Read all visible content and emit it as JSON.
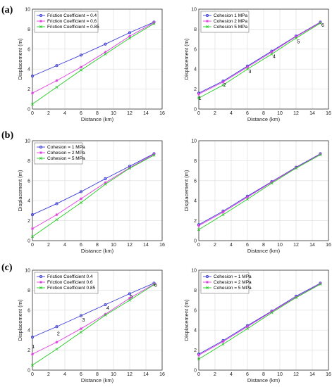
{
  "figure": {
    "row_labels": [
      "(a)",
      "(b)",
      "(c)"
    ]
  },
  "chart_data": [
    {
      "type": "line",
      "xlabel": "Distance (km)",
      "ylabel": "Displacement (m)",
      "xlim": [
        0,
        16
      ],
      "ylim": [
        0,
        10
      ],
      "xticks": [
        0,
        2,
        4,
        6,
        8,
        10,
        12,
        14,
        16
      ],
      "yticks": [
        0,
        2,
        4,
        6,
        8,
        10
      ],
      "grid": true,
      "legend_position": "top-left",
      "x": [
        0,
        3,
        6,
        9,
        12,
        15
      ],
      "series": [
        {
          "name": "Friction Coefficient = 0.4",
          "color": "#3b3bd9",
          "marker": "circle",
          "values": [
            3.3,
            4.35,
            5.4,
            6.5,
            7.65,
            8.7
          ]
        },
        {
          "name": "Friction Coefficient = 0.6",
          "color": "#e03ce0",
          "marker": "star",
          "values": [
            1.6,
            2.85,
            4.2,
            5.7,
            7.3,
            8.65
          ]
        },
        {
          "name": "Friction Coefficient = 0.85",
          "color": "#22cc22",
          "marker": "x",
          "values": [
            0.5,
            2.2,
            3.9,
            5.5,
            7.1,
            8.55
          ]
        }
      ],
      "point_labels": []
    },
    {
      "type": "line",
      "xlabel": "Distance (km)",
      "ylabel": "Displacement (m)",
      "xlim": [
        0,
        16
      ],
      "ylim": [
        0,
        10
      ],
      "xticks": [
        0,
        2,
        4,
        6,
        8,
        10,
        12,
        14,
        16
      ],
      "yticks": [
        0,
        2,
        4,
        6,
        8,
        10
      ],
      "grid": true,
      "legend_position": "top-left",
      "x": [
        0,
        3,
        6,
        9,
        12,
        15
      ],
      "series": [
        {
          "name": "Cohesion 1 MPa",
          "color": "#3b3bd9",
          "marker": "circle",
          "values": [
            1.6,
            2.8,
            4.3,
            5.8,
            7.3,
            8.7
          ]
        },
        {
          "name": "Cohesion 2 MPa",
          "color": "#e03ce0",
          "marker": "star",
          "values": [
            1.5,
            2.7,
            4.2,
            5.7,
            7.25,
            8.65
          ]
        },
        {
          "name": "Cohesion 5 MPa",
          "color": "#22cc22",
          "marker": "x",
          "values": [
            1.1,
            2.4,
            4.0,
            5.5,
            7.1,
            8.6
          ]
        }
      ],
      "point_labels": [
        {
          "text": "1",
          "x": 0.15,
          "y": 0.9
        },
        {
          "text": "2",
          "x": 3.2,
          "y": 2.25
        },
        {
          "text": "3",
          "x": 6.3,
          "y": 3.6
        },
        {
          "text": "4",
          "x": 9.3,
          "y": 5.1
        },
        {
          "text": "5",
          "x": 12.3,
          "y": 6.6
        },
        {
          "text": "6",
          "x": 15.3,
          "y": 8.25
        }
      ]
    },
    {
      "type": "line",
      "xlabel": "Distance (km)",
      "ylabel": "Displacement (m)",
      "xlim": [
        0,
        16
      ],
      "ylim": [
        0,
        10
      ],
      "xticks": [
        0,
        2,
        4,
        6,
        8,
        10,
        12,
        14,
        16
      ],
      "yticks": [
        0,
        2,
        4,
        6,
        8,
        10
      ],
      "grid": true,
      "legend_position": "top-left",
      "x": [
        0,
        3,
        6,
        9,
        12,
        15
      ],
      "series": [
        {
          "name": "Cohesion = 1 MPa",
          "color": "#3b3bd9",
          "marker": "circle",
          "values": [
            2.6,
            3.7,
            4.9,
            6.2,
            7.45,
            8.7
          ]
        },
        {
          "name": "Cohesion = 2 MPa",
          "color": "#e03ce0",
          "marker": "star",
          "values": [
            1.2,
            2.6,
            4.2,
            5.8,
            7.3,
            8.65
          ]
        },
        {
          "name": "Cohesion = 5 MPa",
          "color": "#22cc22",
          "marker": "x",
          "values": [
            0.4,
            2.1,
            3.8,
            5.65,
            7.25,
            8.55
          ]
        }
      ],
      "point_labels": []
    },
    {
      "type": "line",
      "xlabel": "Distance (km)",
      "ylabel": "Displacement (m)",
      "xlim": [
        0,
        16
      ],
      "ylim": [
        0,
        10
      ],
      "xticks": [
        0,
        2,
        4,
        6,
        8,
        10,
        12,
        14,
        16
      ],
      "yticks": [
        0,
        2,
        4,
        6,
        8,
        10
      ],
      "grid": true,
      "legend_position": "none",
      "x": [
        0,
        3,
        6,
        9,
        12,
        15
      ],
      "series": [
        {
          "name": "",
          "color": "#3b3bd9",
          "marker": "circle",
          "values": [
            1.6,
            2.95,
            4.45,
            5.9,
            7.35,
            8.7
          ]
        },
        {
          "name": "",
          "color": "#e03ce0",
          "marker": "star",
          "values": [
            1.5,
            2.85,
            4.35,
            5.85,
            7.3,
            8.65
          ]
        },
        {
          "name": "",
          "color": "#22cc22",
          "marker": "x",
          "values": [
            1.1,
            2.6,
            4.15,
            5.75,
            7.25,
            8.6
          ]
        }
      ],
      "point_labels": []
    },
    {
      "type": "line",
      "xlabel": "Distance (km)",
      "ylabel": "Displacement (m)",
      "xlim": [
        0,
        16
      ],
      "ylim": [
        0,
        10
      ],
      "xticks": [
        0,
        2,
        4,
        6,
        8,
        10,
        12,
        14,
        16
      ],
      "yticks": [
        0,
        2,
        4,
        6,
        8,
        10
      ],
      "grid": true,
      "legend_position": "top-left",
      "x": [
        0,
        3,
        6,
        9,
        12,
        15
      ],
      "series": [
        {
          "name": "Friction Coefficient 0.4",
          "color": "#3b3bd9",
          "marker": "circle",
          "values": [
            3.3,
            4.35,
            5.45,
            6.55,
            7.65,
            8.7
          ]
        },
        {
          "name": "Friction Coefficient 0.6",
          "color": "#e03ce0",
          "marker": "star",
          "values": [
            1.6,
            2.8,
            4.15,
            5.6,
            7.2,
            8.6
          ]
        },
        {
          "name": "Friction Coefficient 0.85",
          "color": "#22cc22",
          "marker": "x",
          "values": [
            0.5,
            2.1,
            3.8,
            5.5,
            7.0,
            8.55
          ]
        }
      ],
      "point_labels": [
        {
          "text": "1",
          "x": 0.1,
          "y": 2.2
        },
        {
          "text": "2",
          "x": 3.2,
          "y": 3.5
        },
        {
          "text": "3",
          "x": 6.3,
          "y": 4.85
        },
        {
          "text": "4",
          "x": 9.3,
          "y": 6.05
        },
        {
          "text": "5",
          "x": 12.2,
          "y": 7.2
        },
        {
          "text": "6",
          "x": 15.2,
          "y": 8.35
        }
      ]
    },
    {
      "type": "line",
      "xlabel": "Distance (km)",
      "ylabel": "Displacement (m)",
      "xlim": [
        0,
        16
      ],
      "ylim": [
        0,
        10
      ],
      "xticks": [
        0,
        2,
        4,
        6,
        8,
        10,
        12,
        14,
        16
      ],
      "yticks": [
        0,
        2,
        4,
        6,
        8,
        10
      ],
      "grid": true,
      "legend_position": "top-left",
      "x": [
        0,
        3,
        6,
        9,
        12,
        15
      ],
      "series": [
        {
          "name": "Cohesion = 1 MPa",
          "color": "#3b3bd9",
          "marker": "circle",
          "values": [
            1.6,
            2.95,
            4.45,
            5.9,
            7.4,
            8.7
          ]
        },
        {
          "name": "Cohesion = 2 MPa",
          "color": "#e03ce0",
          "marker": "star",
          "values": [
            1.5,
            2.85,
            4.35,
            5.85,
            7.3,
            8.65
          ]
        },
        {
          "name": "Cohesion = 5 MPa",
          "color": "#22cc22",
          "marker": "x",
          "values": [
            1.1,
            2.6,
            4.15,
            5.75,
            7.25,
            8.6
          ]
        }
      ],
      "point_labels": []
    }
  ]
}
